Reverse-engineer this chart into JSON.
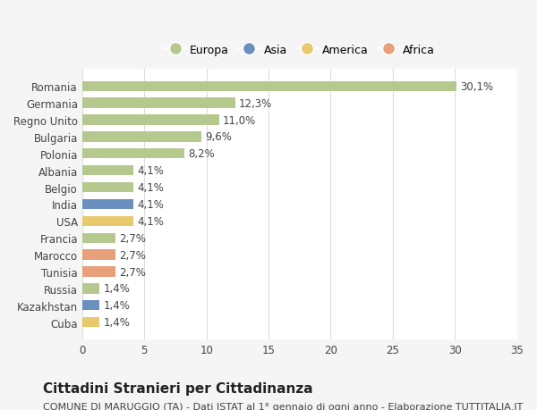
{
  "categories": [
    "Romania",
    "Germania",
    "Regno Unito",
    "Bulgaria",
    "Polonia",
    "Albania",
    "Belgio",
    "India",
    "USA",
    "Francia",
    "Marocco",
    "Tunisia",
    "Russia",
    "Kazakhstan",
    "Cuba"
  ],
  "values": [
    30.1,
    12.3,
    11.0,
    9.6,
    8.2,
    4.1,
    4.1,
    4.1,
    4.1,
    2.7,
    2.7,
    2.7,
    1.4,
    1.4,
    1.4
  ],
  "labels": [
    "30,1%",
    "12,3%",
    "11,0%",
    "9,6%",
    "8,2%",
    "4,1%",
    "4,1%",
    "4,1%",
    "4,1%",
    "2,7%",
    "2,7%",
    "2,7%",
    "1,4%",
    "1,4%",
    "1,4%"
  ],
  "continents": [
    "Europa",
    "Europa",
    "Europa",
    "Europa",
    "Europa",
    "Europa",
    "Europa",
    "Asia",
    "America",
    "Europa",
    "Africa",
    "Africa",
    "Europa",
    "Asia",
    "America"
  ],
  "colors": {
    "Europa": "#b5c98e",
    "Asia": "#6b8fbf",
    "America": "#e8c96b",
    "Africa": "#e8a07a"
  },
  "legend_order": [
    "Europa",
    "Asia",
    "America",
    "Africa"
  ],
  "xlim": [
    0,
    35
  ],
  "xticks": [
    0,
    5,
    10,
    15,
    20,
    25,
    30,
    35
  ],
  "title": "Cittadini Stranieri per Cittadinanza",
  "subtitle": "COMUNE DI MARUGGIO (TA) - Dati ISTAT al 1° gennaio di ogni anno - Elaborazione TUTTITALIA.IT",
  "bg_color": "#f5f5f5",
  "plot_bg_color": "#ffffff",
  "grid_color": "#dddddd",
  "bar_height": 0.6,
  "label_fontsize": 8.5,
  "title_fontsize": 11,
  "subtitle_fontsize": 8,
  "ytick_fontsize": 8.5,
  "xtick_fontsize": 8.5
}
